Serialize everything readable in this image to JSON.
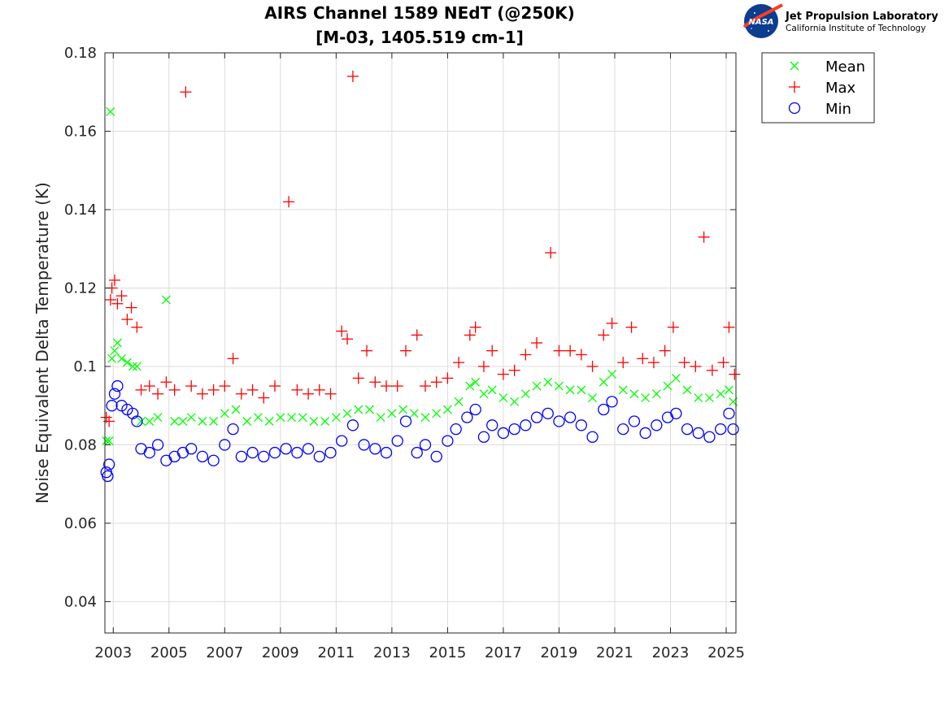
{
  "header": {
    "logo": {
      "icon": "nasa-meatball-icon",
      "org_name": "Jet Propulsion Laboratory",
      "org_sub": "California Institute of Technology"
    }
  },
  "chart_data": {
    "type": "scatter",
    "title": [
      "AIRS Channel 1589 NEdT (@250K)",
      "[M-03, 1405.519 cm-1]"
    ],
    "xlabel": "",
    "ylabel": "Noise Equivalent Delta Temperature (K)",
    "xlim": [
      2002.7,
      2025.35
    ],
    "ylim": [
      0.032,
      0.18
    ],
    "xticks": [
      2003,
      2005,
      2007,
      2009,
      2011,
      2013,
      2015,
      2017,
      2019,
      2021,
      2023,
      2025
    ],
    "xtick_labels": [
      "2003",
      "2005",
      "2007",
      "2009",
      "2011",
      "2013",
      "2015",
      "2017",
      "2019",
      "2021",
      "2023",
      "2025"
    ],
    "yticks": [
      0.04,
      0.06,
      0.08,
      0.1,
      0.12,
      0.14,
      0.16,
      0.18
    ],
    "ytick_labels": [
      "0.04",
      "0.06",
      "0.08",
      "0.1",
      "0.12",
      "0.14",
      "0.16",
      "0.18"
    ],
    "grid": true,
    "legend_position": "outside-top-right",
    "series": [
      {
        "name": "Mean",
        "marker": "x",
        "color": "#00ff00",
        "points": [
          [
            2002.75,
            0.081
          ],
          [
            2002.85,
            0.081
          ],
          [
            2002.9,
            0.165
          ],
          [
            2002.95,
            0.102
          ],
          [
            2003.05,
            0.104
          ],
          [
            2003.15,
            0.106
          ],
          [
            2003.3,
            0.102
          ],
          [
            2003.5,
            0.101
          ],
          [
            2003.7,
            0.1
          ],
          [
            2003.85,
            0.1
          ],
          [
            2004.0,
            0.086
          ],
          [
            2004.3,
            0.086
          ],
          [
            2004.6,
            0.087
          ],
          [
            2004.9,
            0.117
          ],
          [
            2005.2,
            0.086
          ],
          [
            2005.5,
            0.086
          ],
          [
            2005.8,
            0.087
          ],
          [
            2006.2,
            0.086
          ],
          [
            2006.6,
            0.086
          ],
          [
            2007.0,
            0.088
          ],
          [
            2007.4,
            0.089
          ],
          [
            2007.8,
            0.086
          ],
          [
            2008.2,
            0.087
          ],
          [
            2008.6,
            0.086
          ],
          [
            2009.0,
            0.087
          ],
          [
            2009.4,
            0.087
          ],
          [
            2009.8,
            0.087
          ],
          [
            2010.2,
            0.086
          ],
          [
            2010.6,
            0.086
          ],
          [
            2011.0,
            0.087
          ],
          [
            2011.4,
            0.088
          ],
          [
            2011.8,
            0.089
          ],
          [
            2012.2,
            0.089
          ],
          [
            2012.6,
            0.087
          ],
          [
            2013.0,
            0.088
          ],
          [
            2013.4,
            0.089
          ],
          [
            2013.8,
            0.088
          ],
          [
            2014.2,
            0.087
          ],
          [
            2014.6,
            0.088
          ],
          [
            2015.0,
            0.089
          ],
          [
            2015.4,
            0.091
          ],
          [
            2015.8,
            0.095
          ],
          [
            2016.0,
            0.096
          ],
          [
            2016.3,
            0.093
          ],
          [
            2016.6,
            0.094
          ],
          [
            2017.0,
            0.092
          ],
          [
            2017.4,
            0.091
          ],
          [
            2017.8,
            0.093
          ],
          [
            2018.2,
            0.095
          ],
          [
            2018.6,
            0.096
          ],
          [
            2019.0,
            0.095
          ],
          [
            2019.4,
            0.094
          ],
          [
            2019.8,
            0.094
          ],
          [
            2020.2,
            0.092
          ],
          [
            2020.6,
            0.096
          ],
          [
            2020.9,
            0.098
          ],
          [
            2021.3,
            0.094
          ],
          [
            2021.7,
            0.093
          ],
          [
            2022.1,
            0.092
          ],
          [
            2022.5,
            0.093
          ],
          [
            2022.9,
            0.095
          ],
          [
            2023.2,
            0.097
          ],
          [
            2023.6,
            0.094
          ],
          [
            2024.0,
            0.092
          ],
          [
            2024.4,
            0.092
          ],
          [
            2024.8,
            0.093
          ],
          [
            2025.1,
            0.094
          ],
          [
            2025.25,
            0.091
          ]
        ]
      },
      {
        "name": "Max",
        "marker": "+",
        "color": "#ff0000",
        "points": [
          [
            2002.75,
            0.087
          ],
          [
            2002.85,
            0.086
          ],
          [
            2002.9,
            0.117
          ],
          [
            2002.95,
            0.12
          ],
          [
            2003.05,
            0.122
          ],
          [
            2003.15,
            0.116
          ],
          [
            2003.3,
            0.118
          ],
          [
            2003.5,
            0.112
          ],
          [
            2003.65,
            0.115
          ],
          [
            2003.85,
            0.11
          ],
          [
            2004.0,
            0.094
          ],
          [
            2004.3,
            0.095
          ],
          [
            2004.6,
            0.093
          ],
          [
            2004.9,
            0.096
          ],
          [
            2005.2,
            0.094
          ],
          [
            2005.6,
            0.17
          ],
          [
            2005.8,
            0.095
          ],
          [
            2006.2,
            0.093
          ],
          [
            2006.6,
            0.094
          ],
          [
            2007.0,
            0.095
          ],
          [
            2007.3,
            0.102
          ],
          [
            2007.6,
            0.093
          ],
          [
            2008.0,
            0.094
          ],
          [
            2008.4,
            0.092
          ],
          [
            2008.8,
            0.095
          ],
          [
            2009.3,
            0.142
          ],
          [
            2009.6,
            0.094
          ],
          [
            2010.0,
            0.093
          ],
          [
            2010.4,
            0.094
          ],
          [
            2010.8,
            0.093
          ],
          [
            2011.2,
            0.109
          ],
          [
            2011.4,
            0.107
          ],
          [
            2011.6,
            0.174
          ],
          [
            2011.8,
            0.097
          ],
          [
            2012.1,
            0.104
          ],
          [
            2012.4,
            0.096
          ],
          [
            2012.8,
            0.095
          ],
          [
            2013.2,
            0.095
          ],
          [
            2013.5,
            0.104
          ],
          [
            2013.9,
            0.108
          ],
          [
            2014.2,
            0.095
          ],
          [
            2014.6,
            0.096
          ],
          [
            2015.0,
            0.097
          ],
          [
            2015.4,
            0.101
          ],
          [
            2015.8,
            0.108
          ],
          [
            2016.0,
            0.11
          ],
          [
            2016.3,
            0.1
          ],
          [
            2016.6,
            0.104
          ],
          [
            2017.0,
            0.098
          ],
          [
            2017.4,
            0.099
          ],
          [
            2017.8,
            0.103
          ],
          [
            2018.2,
            0.106
          ],
          [
            2018.7,
            0.129
          ],
          [
            2019.0,
            0.104
          ],
          [
            2019.4,
            0.104
          ],
          [
            2019.8,
            0.103
          ],
          [
            2020.2,
            0.1
          ],
          [
            2020.6,
            0.108
          ],
          [
            2020.9,
            0.111
          ],
          [
            2021.3,
            0.101
          ],
          [
            2021.6,
            0.11
          ],
          [
            2022.0,
            0.102
          ],
          [
            2022.4,
            0.101
          ],
          [
            2022.8,
            0.104
          ],
          [
            2023.1,
            0.11
          ],
          [
            2023.5,
            0.101
          ],
          [
            2023.9,
            0.1
          ],
          [
            2024.2,
            0.133
          ],
          [
            2024.5,
            0.099
          ],
          [
            2024.9,
            0.101
          ],
          [
            2025.1,
            0.11
          ],
          [
            2025.3,
            0.098
          ]
        ]
      },
      {
        "name": "Min",
        "marker": "o",
        "color": "#0000ff",
        "points": [
          [
            2002.75,
            0.073
          ],
          [
            2002.8,
            0.072
          ],
          [
            2002.85,
            0.075
          ],
          [
            2002.95,
            0.09
          ],
          [
            2003.05,
            0.093
          ],
          [
            2003.15,
            0.095
          ],
          [
            2003.3,
            0.09
          ],
          [
            2003.5,
            0.089
          ],
          [
            2003.7,
            0.088
          ],
          [
            2003.85,
            0.086
          ],
          [
            2004.0,
            0.079
          ],
          [
            2004.3,
            0.078
          ],
          [
            2004.6,
            0.08
          ],
          [
            2004.9,
            0.076
          ],
          [
            2005.2,
            0.077
          ],
          [
            2005.5,
            0.078
          ],
          [
            2005.8,
            0.079
          ],
          [
            2006.2,
            0.077
          ],
          [
            2006.6,
            0.076
          ],
          [
            2007.0,
            0.08
          ],
          [
            2007.3,
            0.084
          ],
          [
            2007.6,
            0.077
          ],
          [
            2008.0,
            0.078
          ],
          [
            2008.4,
            0.077
          ],
          [
            2008.8,
            0.078
          ],
          [
            2009.2,
            0.079
          ],
          [
            2009.6,
            0.078
          ],
          [
            2010.0,
            0.079
          ],
          [
            2010.4,
            0.077
          ],
          [
            2010.8,
            0.078
          ],
          [
            2011.2,
            0.081
          ],
          [
            2011.6,
            0.085
          ],
          [
            2012.0,
            0.08
          ],
          [
            2012.4,
            0.079
          ],
          [
            2012.8,
            0.078
          ],
          [
            2013.2,
            0.081
          ],
          [
            2013.5,
            0.086
          ],
          [
            2013.9,
            0.078
          ],
          [
            2014.2,
            0.08
          ],
          [
            2014.6,
            0.077
          ],
          [
            2015.0,
            0.081
          ],
          [
            2015.3,
            0.084
          ],
          [
            2015.7,
            0.087
          ],
          [
            2016.0,
            0.089
          ],
          [
            2016.3,
            0.082
          ],
          [
            2016.6,
            0.085
          ],
          [
            2017.0,
            0.083
          ],
          [
            2017.4,
            0.084
          ],
          [
            2017.8,
            0.085
          ],
          [
            2018.2,
            0.087
          ],
          [
            2018.6,
            0.088
          ],
          [
            2019.0,
            0.086
          ],
          [
            2019.4,
            0.087
          ],
          [
            2019.8,
            0.085
          ],
          [
            2020.2,
            0.082
          ],
          [
            2020.6,
            0.089
          ],
          [
            2020.9,
            0.091
          ],
          [
            2021.3,
            0.084
          ],
          [
            2021.7,
            0.086
          ],
          [
            2022.1,
            0.083
          ],
          [
            2022.5,
            0.085
          ],
          [
            2022.9,
            0.087
          ],
          [
            2023.2,
            0.088
          ],
          [
            2023.6,
            0.084
          ],
          [
            2024.0,
            0.083
          ],
          [
            2024.4,
            0.082
          ],
          [
            2024.8,
            0.084
          ],
          [
            2025.1,
            0.088
          ],
          [
            2025.25,
            0.084
          ]
        ]
      }
    ]
  }
}
